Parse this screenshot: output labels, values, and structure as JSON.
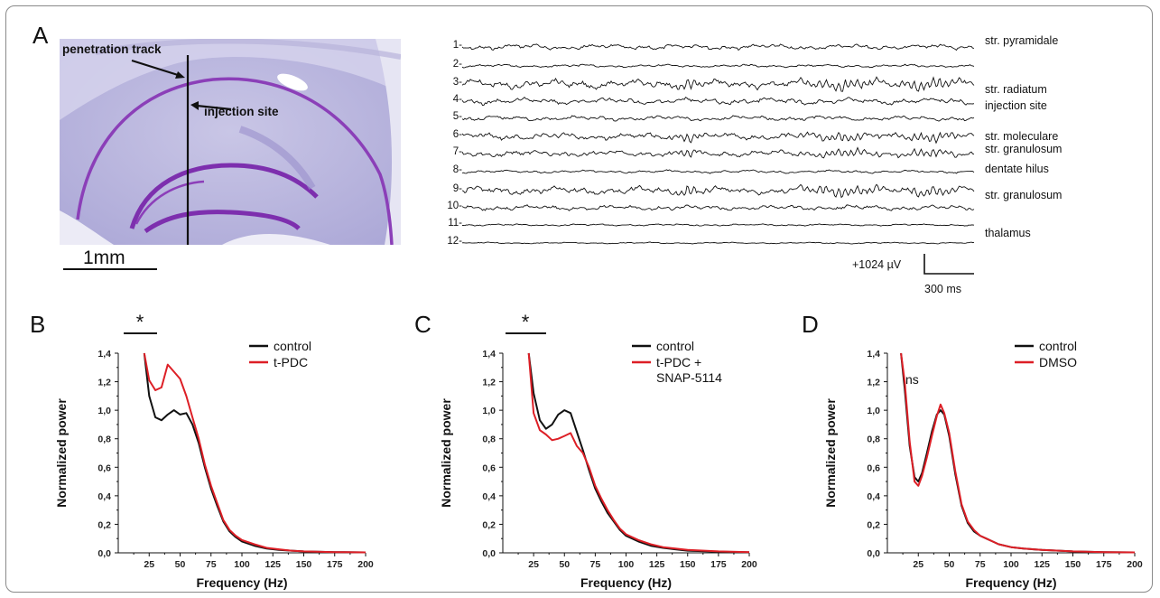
{
  "panel_a": {
    "label": "A",
    "histology": {
      "penetration_label": "penetration track",
      "injection_label": "injection site",
      "scale_label": "1mm"
    },
    "traces": [
      {
        "num": "1-",
        "label": "str. pyramidale"
      },
      {
        "num": "2-",
        "label": ""
      },
      {
        "num": "3-",
        "label": "str. radiatum"
      },
      {
        "num": "4-",
        "label": "injection site"
      },
      {
        "num": "5-",
        "label": ""
      },
      {
        "num": "6-",
        "label": "str. moleculare"
      },
      {
        "num": "7-",
        "label": "str. granulosum"
      },
      {
        "num": "8-",
        "label": "dentate hilus"
      },
      {
        "num": "9-",
        "label": "str. granulosum"
      },
      {
        "num": "10-",
        "label": ""
      },
      {
        "num": "11-",
        "label": ""
      },
      {
        "num": "12-",
        "label": "thalamus"
      }
    ],
    "scalebar": {
      "voltage": "+1024 µV",
      "time": "300 ms"
    }
  },
  "chart_data": [
    {
      "panel": "B",
      "type": "line",
      "xlabel": "Frequency (Hz)",
      "ylabel": "Normalized power",
      "xlim": [
        0,
        200
      ],
      "ylim": [
        0,
        1.4
      ],
      "xticks": [
        "25",
        "50",
        "75",
        "100",
        "125",
        "150",
        "175",
        "200"
      ],
      "yticks": [
        "0,0",
        "0,2",
        "0,4",
        "0,6",
        "0,8",
        "1,0",
        "1,2",
        "1,4"
      ],
      "legend_position": "top-right",
      "annotation": "*",
      "series": [
        {
          "name": "control",
          "color": "#111111",
          "x": [
            21,
            25,
            30,
            35,
            40,
            45,
            50,
            55,
            60,
            65,
            70,
            75,
            80,
            85,
            90,
            95,
            100,
            110,
            120,
            130,
            140,
            150,
            175,
            200
          ],
          "y": [
            1.4,
            1.1,
            0.95,
            0.93,
            0.97,
            1.0,
            0.97,
            0.98,
            0.9,
            0.77,
            0.6,
            0.45,
            0.33,
            0.22,
            0.15,
            0.11,
            0.08,
            0.05,
            0.03,
            0.02,
            0.015,
            0.01,
            0.005,
            0.003
          ]
        },
        {
          "name": "t-PDC",
          "color": "#dd1f26",
          "x": [
            21,
            25,
            30,
            35,
            40,
            45,
            50,
            55,
            60,
            65,
            70,
            75,
            80,
            85,
            90,
            95,
            100,
            110,
            120,
            130,
            140,
            150,
            175,
            200
          ],
          "y": [
            1.4,
            1.21,
            1.14,
            1.16,
            1.32,
            1.27,
            1.22,
            1.1,
            0.95,
            0.8,
            0.62,
            0.47,
            0.35,
            0.23,
            0.16,
            0.12,
            0.09,
            0.06,
            0.035,
            0.025,
            0.015,
            0.01,
            0.005,
            0.003
          ]
        }
      ]
    },
    {
      "panel": "C",
      "type": "line",
      "xlabel": "Frequency (Hz)",
      "ylabel": "Normalized power",
      "xlim": [
        0,
        200
      ],
      "ylim": [
        0,
        1.4
      ],
      "xticks": [
        "25",
        "50",
        "75",
        "100",
        "125",
        "150",
        "175",
        "200"
      ],
      "yticks": [
        "0,0",
        "0,2",
        "0,4",
        "0,6",
        "0,8",
        "1,0",
        "1,2",
        "1,4"
      ],
      "legend_position": "top-right",
      "annotation": "*",
      "series": [
        {
          "name": "control",
          "color": "#111111",
          "x": [
            21,
            25,
            30,
            35,
            40,
            45,
            50,
            55,
            60,
            65,
            70,
            75,
            80,
            85,
            90,
            95,
            100,
            110,
            120,
            130,
            140,
            150,
            175,
            200
          ],
          "y": [
            1.4,
            1.12,
            0.93,
            0.87,
            0.9,
            0.97,
            1.0,
            0.98,
            0.85,
            0.72,
            0.58,
            0.45,
            0.36,
            0.28,
            0.22,
            0.16,
            0.12,
            0.08,
            0.05,
            0.035,
            0.025,
            0.015,
            0.008,
            0.004
          ]
        },
        {
          "name": "t-PDC +\nSNAP-5114",
          "color": "#dd1f26",
          "x": [
            21,
            25,
            30,
            35,
            40,
            45,
            50,
            55,
            60,
            65,
            70,
            75,
            80,
            85,
            90,
            95,
            100,
            110,
            120,
            130,
            140,
            150,
            175,
            200
          ],
          "y": [
            1.4,
            0.98,
            0.86,
            0.83,
            0.79,
            0.8,
            0.82,
            0.84,
            0.75,
            0.7,
            0.6,
            0.47,
            0.38,
            0.3,
            0.23,
            0.17,
            0.13,
            0.09,
            0.06,
            0.04,
            0.03,
            0.02,
            0.01,
            0.005
          ]
        }
      ]
    },
    {
      "panel": "D",
      "type": "line",
      "xlabel": "Frequency (Hz)",
      "ylabel": "Normalized power",
      "xlim": [
        0,
        200
      ],
      "ylim": [
        0,
        1.4
      ],
      "xticks": [
        "25",
        "50",
        "75",
        "100",
        "125",
        "150",
        "175",
        "200"
      ],
      "yticks": [
        "0,0",
        "0,2",
        "0,4",
        "0,6",
        "0,8",
        "1,0",
        "1,2",
        "1,4"
      ],
      "legend_position": "top-right",
      "annotation": "ns",
      "series": [
        {
          "name": "control",
          "color": "#111111",
          "x": [
            11,
            14,
            18,
            22,
            25,
            28,
            32,
            36,
            40,
            43,
            46,
            50,
            55,
            60,
            65,
            70,
            75,
            80,
            85,
            90,
            100,
            110,
            125,
            150,
            175,
            200
          ],
          "y": [
            1.4,
            1.15,
            0.75,
            0.53,
            0.5,
            0.56,
            0.7,
            0.85,
            0.97,
            1.0,
            0.97,
            0.82,
            0.55,
            0.33,
            0.21,
            0.15,
            0.12,
            0.1,
            0.08,
            0.06,
            0.04,
            0.03,
            0.02,
            0.01,
            0.005,
            0.003
          ]
        },
        {
          "name": "DMSO",
          "color": "#dd1f26",
          "x": [
            11,
            14,
            18,
            22,
            25,
            28,
            32,
            36,
            40,
            43,
            46,
            50,
            55,
            60,
            65,
            70,
            75,
            80,
            85,
            90,
            100,
            110,
            125,
            150,
            175,
            200
          ],
          "y": [
            1.4,
            1.2,
            0.78,
            0.5,
            0.47,
            0.54,
            0.67,
            0.82,
            0.96,
            1.04,
            0.98,
            0.84,
            0.57,
            0.34,
            0.22,
            0.16,
            0.12,
            0.1,
            0.08,
            0.06,
            0.04,
            0.03,
            0.02,
            0.01,
            0.005,
            0.003
          ]
        }
      ]
    }
  ]
}
